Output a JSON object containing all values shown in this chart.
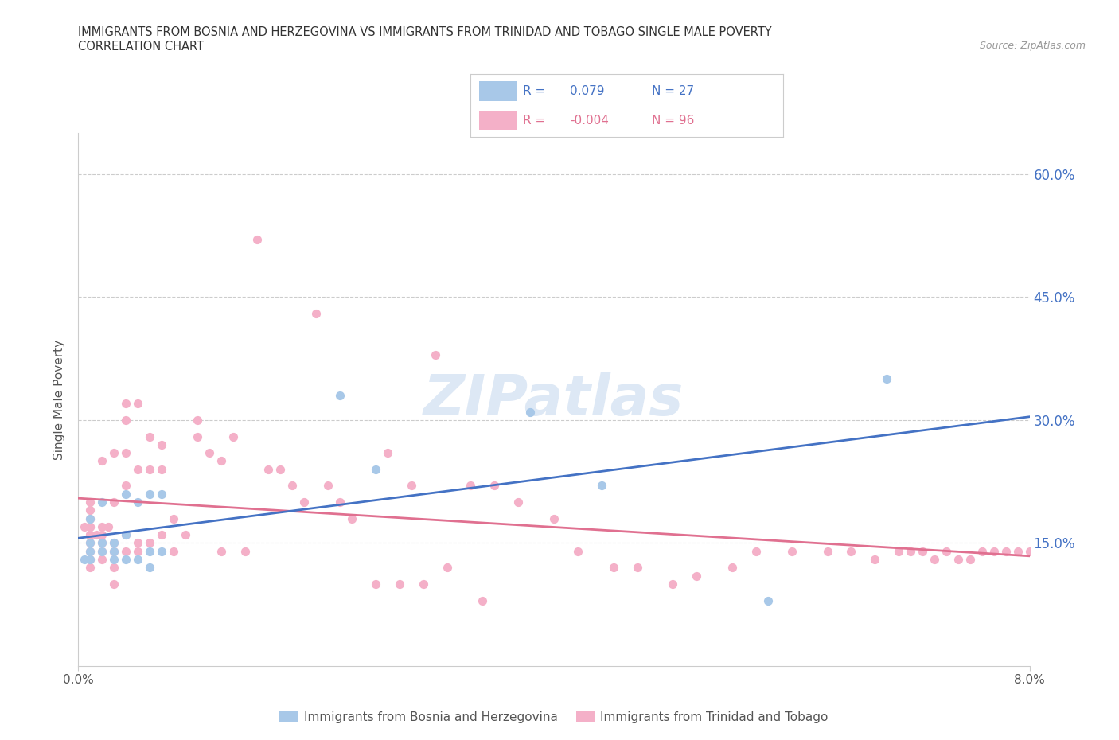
{
  "title_line1": "IMMIGRANTS FROM BOSNIA AND HERZEGOVINA VS IMMIGRANTS FROM TRINIDAD AND TOBAGO SINGLE MALE POVERTY",
  "title_line2": "CORRELATION CHART",
  "source": "Source: ZipAtlas.com",
  "ylabel": "Single Male Poverty",
  "legend_bosnia_r": "0.079",
  "legend_bosnia_n": "27",
  "legend_tt_r": "-0.004",
  "legend_tt_n": "96",
  "color_bosnia": "#a8c8e8",
  "color_tt": "#f4b0c8",
  "color_bosnia_line": "#4472c4",
  "color_tt_line": "#e07090",
  "xlim": [
    0.0,
    0.08
  ],
  "ylim": [
    0.0,
    0.65
  ],
  "yticks": [
    0.15,
    0.3,
    0.45,
    0.6
  ],
  "ytick_labels": [
    "15.0%",
    "30.0%",
    "45.0%",
    "60.0%"
  ],
  "grid_color": "#cccccc",
  "bg_color": "#ffffff",
  "watermark": "ZIPatlas",
  "bosnia_x": [
    0.0005,
    0.001,
    0.001,
    0.001,
    0.001,
    0.002,
    0.002,
    0.002,
    0.003,
    0.003,
    0.003,
    0.004,
    0.004,
    0.004,
    0.005,
    0.005,
    0.006,
    0.006,
    0.006,
    0.007,
    0.007,
    0.022,
    0.025,
    0.038,
    0.044,
    0.058,
    0.068
  ],
  "bosnia_y": [
    0.13,
    0.13,
    0.14,
    0.15,
    0.18,
    0.14,
    0.15,
    0.2,
    0.13,
    0.14,
    0.15,
    0.13,
    0.16,
    0.21,
    0.13,
    0.2,
    0.12,
    0.14,
    0.21,
    0.14,
    0.21,
    0.33,
    0.24,
    0.31,
    0.22,
    0.08,
    0.35
  ],
  "tt_x": [
    0.0005,
    0.001,
    0.001,
    0.001,
    0.001,
    0.001,
    0.001,
    0.001,
    0.001,
    0.001,
    0.001,
    0.001,
    0.0015,
    0.002,
    0.002,
    0.002,
    0.002,
    0.002,
    0.002,
    0.0025,
    0.003,
    0.003,
    0.003,
    0.003,
    0.003,
    0.003,
    0.004,
    0.004,
    0.004,
    0.004,
    0.004,
    0.004,
    0.005,
    0.005,
    0.005,
    0.005,
    0.006,
    0.006,
    0.006,
    0.007,
    0.007,
    0.007,
    0.008,
    0.008,
    0.009,
    0.01,
    0.01,
    0.011,
    0.012,
    0.012,
    0.013,
    0.014,
    0.015,
    0.016,
    0.017,
    0.018,
    0.019,
    0.02,
    0.021,
    0.022,
    0.023,
    0.025,
    0.026,
    0.027,
    0.028,
    0.029,
    0.03,
    0.031,
    0.033,
    0.034,
    0.035,
    0.037,
    0.04,
    0.042,
    0.045,
    0.047,
    0.05,
    0.052,
    0.055,
    0.057,
    0.06,
    0.063,
    0.065,
    0.067,
    0.069,
    0.07,
    0.071,
    0.072,
    0.073,
    0.074,
    0.075,
    0.076,
    0.077,
    0.078,
    0.079,
    0.08
  ],
  "tt_y": [
    0.17,
    0.12,
    0.13,
    0.14,
    0.15,
    0.16,
    0.16,
    0.17,
    0.17,
    0.18,
    0.19,
    0.2,
    0.16,
    0.13,
    0.14,
    0.15,
    0.16,
    0.17,
    0.25,
    0.17,
    0.1,
    0.12,
    0.14,
    0.15,
    0.2,
    0.26,
    0.14,
    0.16,
    0.22,
    0.26,
    0.3,
    0.32,
    0.14,
    0.15,
    0.24,
    0.32,
    0.15,
    0.24,
    0.28,
    0.16,
    0.24,
    0.27,
    0.14,
    0.18,
    0.16,
    0.28,
    0.3,
    0.26,
    0.14,
    0.25,
    0.28,
    0.14,
    0.52,
    0.24,
    0.24,
    0.22,
    0.2,
    0.43,
    0.22,
    0.2,
    0.18,
    0.1,
    0.26,
    0.1,
    0.22,
    0.1,
    0.38,
    0.12,
    0.22,
    0.08,
    0.22,
    0.2,
    0.18,
    0.14,
    0.12,
    0.12,
    0.1,
    0.11,
    0.12,
    0.14,
    0.14,
    0.14,
    0.14,
    0.13,
    0.14,
    0.14,
    0.14,
    0.13,
    0.14,
    0.13,
    0.13,
    0.14,
    0.14,
    0.14,
    0.14,
    0.14
  ]
}
